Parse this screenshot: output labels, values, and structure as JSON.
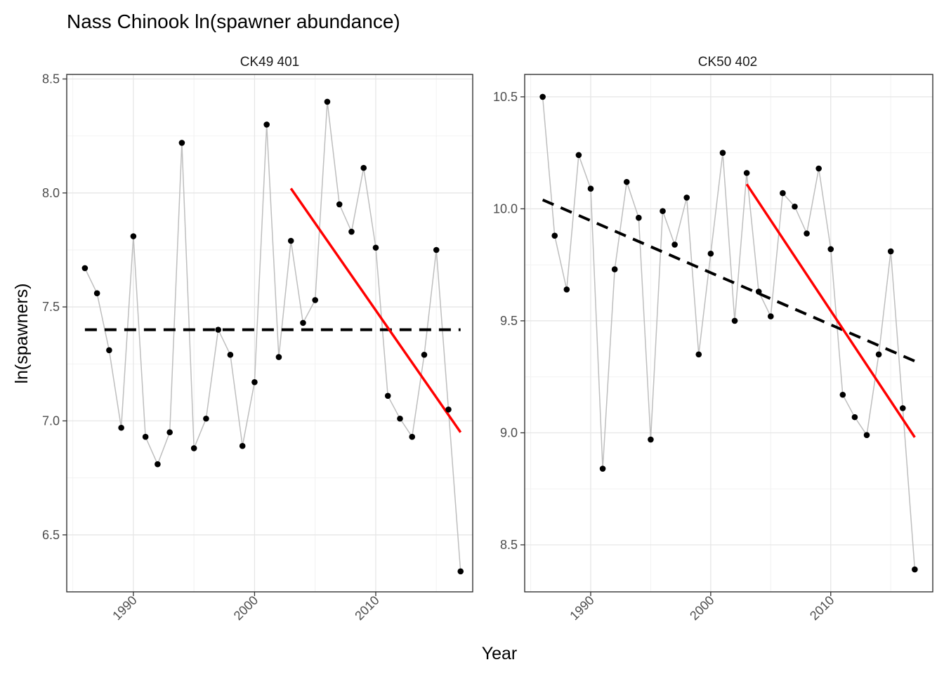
{
  "chart_data": {
    "type": "line",
    "title": "Nass Chinook ln(spawner abundance)",
    "xlabel": "Year",
    "ylabel": "ln(spawners)",
    "panels": [
      {
        "name": "CK49 401",
        "xlim": [
          1984.5,
          2018
        ],
        "ylim": [
          6.25,
          8.52
        ],
        "xticks": [
          1990,
          2000,
          2010
        ],
        "xtick_labels": [
          "1990",
          "2000",
          "2010"
        ],
        "yticks": [
          6.5,
          7.0,
          7.5,
          8.0,
          8.5
        ],
        "ytick_labels": [
          "6.5",
          "7.0",
          "7.5",
          "8.0",
          "8.5"
        ],
        "points": [
          {
            "x": 1986,
            "y": 7.67
          },
          {
            "x": 1987,
            "y": 7.56
          },
          {
            "x": 1988,
            "y": 7.31
          },
          {
            "x": 1989,
            "y": 6.97
          },
          {
            "x": 1990,
            "y": 7.81
          },
          {
            "x": 1991,
            "y": 6.93
          },
          {
            "x": 1992,
            "y": 6.81
          },
          {
            "x": 1993,
            "y": 6.95
          },
          {
            "x": 1994,
            "y": 8.22
          },
          {
            "x": 1995,
            "y": 6.88
          },
          {
            "x": 1996,
            "y": 7.01
          },
          {
            "x": 1997,
            "y": 7.4
          },
          {
            "x": 1998,
            "y": 7.29
          },
          {
            "x": 1999,
            "y": 6.89
          },
          {
            "x": 2000,
            "y": 7.17
          },
          {
            "x": 2001,
            "y": 8.3
          },
          {
            "x": 2002,
            "y": 7.28
          },
          {
            "x": 2003,
            "y": 7.79
          },
          {
            "x": 2004,
            "y": 7.43
          },
          {
            "x": 2005,
            "y": 7.53
          },
          {
            "x": 2006,
            "y": 8.4
          },
          {
            "x": 2007,
            "y": 7.95
          },
          {
            "x": 2008,
            "y": 7.83
          },
          {
            "x": 2009,
            "y": 8.11
          },
          {
            "x": 2010,
            "y": 7.76
          },
          {
            "x": 2011,
            "y": 7.11
          },
          {
            "x": 2012,
            "y": 7.01
          },
          {
            "x": 2013,
            "y": 6.93
          },
          {
            "x": 2014,
            "y": 7.29
          },
          {
            "x": 2015,
            "y": 7.75
          },
          {
            "x": 2016,
            "y": 7.05
          },
          {
            "x": 2017,
            "y": 6.34
          }
        ],
        "long_trend": {
          "x": [
            1986,
            2017
          ],
          "y": [
            7.4,
            7.4
          ]
        },
        "recent_trend": {
          "x": [
            2003,
            2017
          ],
          "y": [
            8.02,
            6.95
          ]
        }
      },
      {
        "name": "CK50 402",
        "xlim": [
          1984.5,
          2018.5
        ],
        "ylim": [
          8.29,
          10.6
        ],
        "xticks": [
          1990,
          2000,
          2010
        ],
        "xtick_labels": [
          "1990",
          "2000",
          "2010"
        ],
        "yticks": [
          8.5,
          9.0,
          9.5,
          10.0,
          10.5
        ],
        "ytick_labels": [
          "8.5",
          "9.0",
          "9.5",
          "10.0",
          "10.5"
        ],
        "points": [
          {
            "x": 1986,
            "y": 10.5
          },
          {
            "x": 1987,
            "y": 9.88
          },
          {
            "x": 1988,
            "y": 9.64
          },
          {
            "x": 1989,
            "y": 10.24
          },
          {
            "x": 1990,
            "y": 10.09
          },
          {
            "x": 1991,
            "y": 8.84
          },
          {
            "x": 1992,
            "y": 9.73
          },
          {
            "x": 1993,
            "y": 10.12
          },
          {
            "x": 1994,
            "y": 9.96
          },
          {
            "x": 1995,
            "y": 8.97
          },
          {
            "x": 1996,
            "y": 9.99
          },
          {
            "x": 1997,
            "y": 9.84
          },
          {
            "x": 1998,
            "y": 10.05
          },
          {
            "x": 1999,
            "y": 9.35
          },
          {
            "x": 2000,
            "y": 9.8
          },
          {
            "x": 2001,
            "y": 10.25
          },
          {
            "x": 2002,
            "y": 9.5
          },
          {
            "x": 2003,
            "y": 10.16
          },
          {
            "x": 2004,
            "y": 9.63
          },
          {
            "x": 2005,
            "y": 9.52
          },
          {
            "x": 2006,
            "y": 10.07
          },
          {
            "x": 2007,
            "y": 10.01
          },
          {
            "x": 2008,
            "y": 9.89
          },
          {
            "x": 2009,
            "y": 10.18
          },
          {
            "x": 2010,
            "y": 9.82
          },
          {
            "x": 2011,
            "y": 9.17
          },
          {
            "x": 2012,
            "y": 9.07
          },
          {
            "x": 2013,
            "y": 8.99
          },
          {
            "x": 2014,
            "y": 9.35
          },
          {
            "x": 2015,
            "y": 9.81
          },
          {
            "x": 2016,
            "y": 9.11
          },
          {
            "x": 2017,
            "y": 8.39
          }
        ],
        "long_trend": {
          "x": [
            1986,
            2017
          ],
          "y": [
            10.04,
            9.32
          ]
        },
        "recent_trend": {
          "x": [
            2003,
            2017
          ],
          "y": [
            10.11,
            8.98
          ]
        }
      }
    ],
    "colors": {
      "connector": "#bebebe",
      "point": "#000000",
      "long_trend": "#000000",
      "recent_trend": "#ff0000",
      "grid_major": "#e6e6e6",
      "grid_minor": "#f2f2f2",
      "panel_border": "#333333",
      "tick_text": "#4d4d4d"
    },
    "grid": true
  }
}
